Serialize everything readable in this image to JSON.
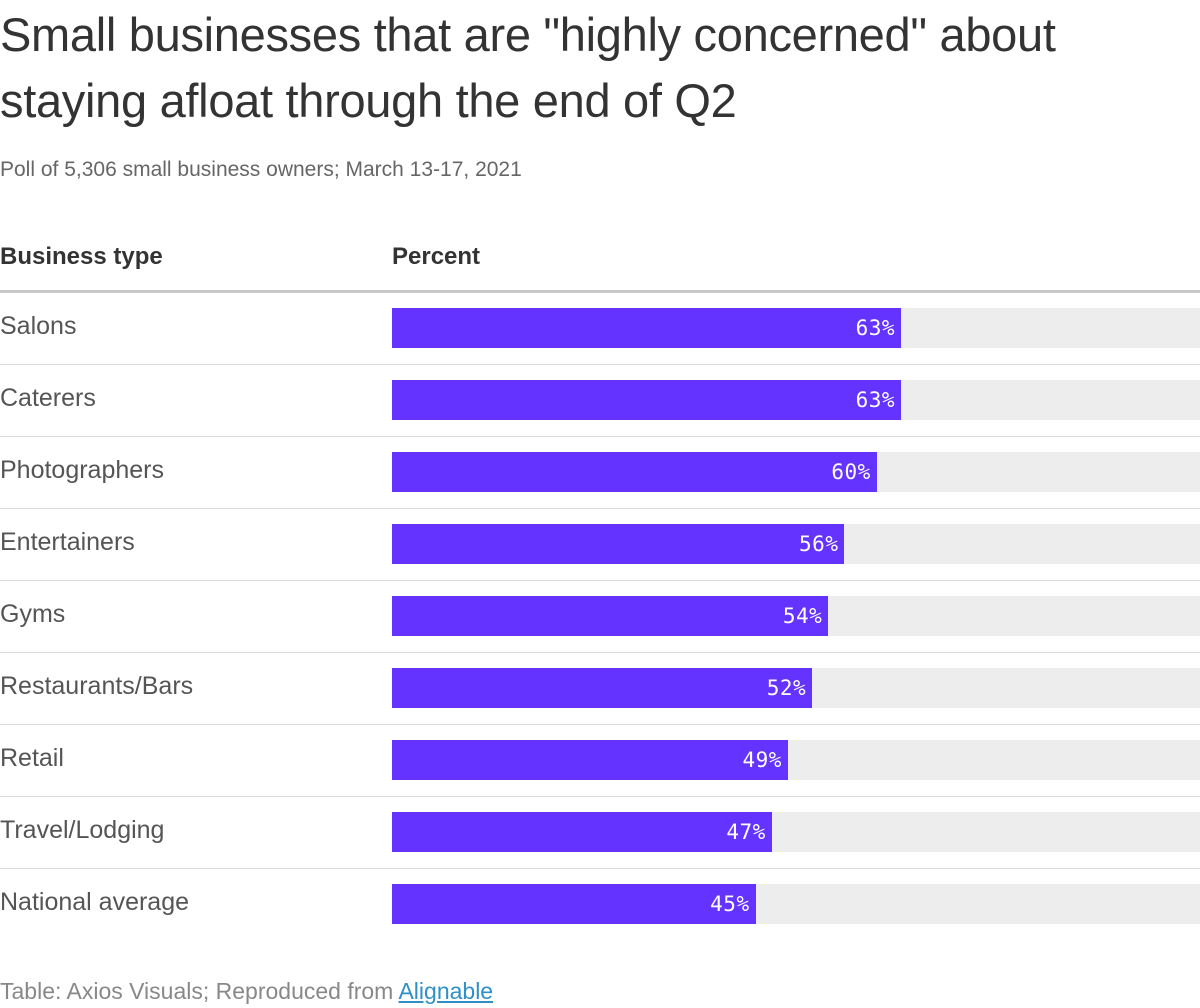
{
  "title": "Small businesses that are \"highly concerned\" about staying afloat through the end of Q2",
  "subtitle": "Poll of 5,306 small business owners; March 13-17, 2021",
  "table": {
    "col_type": "Business type",
    "col_percent": "Percent"
  },
  "footer": {
    "prefix": "Table: Axios Visuals; Reproduced from ",
    "link_text": "Alignable"
  },
  "colors": {
    "bar": "#6533ff",
    "track": "#ededed"
  },
  "chart_data": {
    "type": "bar",
    "orientation": "horizontal",
    "title": "Small businesses that are \"highly concerned\" about staying afloat through the end of Q2",
    "subtitle": "Poll of 5,306 small business owners; March 13-17, 2021",
    "xlabel": "Percent",
    "ylabel": "Business type",
    "xlim": [
      0,
      100
    ],
    "categories": [
      "Salons",
      "Caterers",
      "Photographers",
      "Entertainers",
      "Gyms",
      "Restaurants/Bars",
      "Retail",
      "Travel/Lodging",
      "National average"
    ],
    "values": [
      63,
      63,
      60,
      56,
      54,
      52,
      49,
      47,
      45
    ],
    "value_labels": [
      "63%",
      "63%",
      "60%",
      "56%",
      "54%",
      "52%",
      "49%",
      "47%",
      "45%"
    ]
  }
}
